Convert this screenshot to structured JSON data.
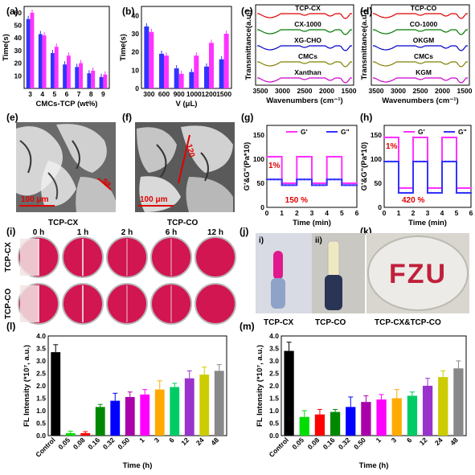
{
  "figure": {
    "panels": [
      "(a)",
      "(b)",
      "(c)",
      "(d)",
      "(e)",
      "(f)",
      "(g)",
      "(h)",
      "(i)",
      "(j)",
      "(k)",
      "(l)",
      "(m)"
    ]
  },
  "chart_data": [
    {
      "id": "a",
      "type": "bar",
      "xlabel": "CMCs-TCP (wt%)",
      "ylabel": "Time(s)",
      "categories": [
        "3",
        "4",
        "5",
        "6",
        "7",
        "8",
        "9"
      ],
      "yticks": [
        "10",
        "20",
        "30",
        "40",
        "50",
        "60"
      ],
      "ylim": [
        0,
        65
      ],
      "series": [
        {
          "color": "#3333ff",
          "values": [
            55,
            43,
            28,
            19,
            17,
            12,
            9
          ]
        },
        {
          "color": "#ff33ff",
          "values": [
            60,
            42,
            33,
            26,
            20,
            14,
            11
          ]
        }
      ]
    },
    {
      "id": "b",
      "type": "bar",
      "xlabel": "V (μL)",
      "ylabel": "Time(s)",
      "categories": [
        "300",
        "600",
        "900",
        "1000",
        "1200",
        "1500"
      ],
      "yticks": [
        "0",
        "10",
        "20",
        "30",
        "40"
      ],
      "ylim": [
        0,
        45
      ],
      "series": [
        {
          "color": "#3333ff",
          "values": [
            34,
            19,
            11,
            9,
            12,
            16
          ]
        },
        {
          "color": "#ff33ff",
          "values": [
            31,
            18,
            8,
            18,
            25,
            30
          ]
        }
      ]
    },
    {
      "id": "c",
      "type": "line",
      "xlabel": "Wavenumbers (cm⁻¹)",
      "ylabel": "Transmittance(a.u.)",
      "xticks": [
        "3500",
        "3000",
        "2500",
        "2000",
        "1500"
      ],
      "series": [
        {
          "name": "TCP-CX",
          "color": "#e00000"
        },
        {
          "name": "CX-1000",
          "color": "#007a00"
        },
        {
          "name": "XG-CHO",
          "color": "#0000cc"
        },
        {
          "name": "CMCs",
          "color": "#808000"
        },
        {
          "name": "Xanthan",
          "color": "#cc00cc"
        }
      ]
    },
    {
      "id": "d",
      "type": "line",
      "xlabel": "Wavenumbers (cm⁻¹)",
      "ylabel": "Transmittance(a.u.)",
      "xticks": [
        "3500",
        "3000",
        "2500",
        "2000",
        "1500"
      ],
      "series": [
        {
          "name": "TCP-CO",
          "color": "#e00000"
        },
        {
          "name": "CO-1000",
          "color": "#007a00"
        },
        {
          "name": "OKGM",
          "color": "#0000cc"
        },
        {
          "name": "CMCs",
          "color": "#808000"
        },
        {
          "name": "KGM",
          "color": "#cc00cc"
        }
      ]
    },
    {
      "id": "g",
      "type": "line",
      "xlabel": "Time (min)",
      "ylabel": "G'&G\"(Pa*10)",
      "xticks": [
        "0",
        "1",
        "2",
        "3",
        "4",
        "5",
        "6"
      ],
      "xlim": [
        0,
        6
      ],
      "yticks": [
        "0",
        "50",
        "100",
        "150"
      ],
      "ylim": [
        0,
        170
      ],
      "legend": [
        "G'",
        "G\""
      ],
      "annotations": [
        "1%",
        "150 %"
      ],
      "series": [
        {
          "name": "G'",
          "color": "#ff33ff",
          "x": [
            0,
            1,
            1,
            2,
            2,
            3,
            3,
            4,
            4,
            5,
            5,
            6
          ],
          "y": [
            105,
            105,
            50,
            50,
            105,
            105,
            50,
            50,
            105,
            105,
            50,
            50
          ]
        },
        {
          "name": "G\"",
          "color": "#3333ff",
          "x": [
            0,
            1,
            1,
            2,
            2,
            3,
            3,
            4,
            4,
            5,
            5,
            6
          ],
          "y": [
            58,
            58,
            46,
            46,
            58,
            58,
            46,
            46,
            58,
            58,
            46,
            46
          ]
        }
      ]
    },
    {
      "id": "h",
      "type": "line",
      "xlabel": "Time (min)",
      "ylabel": "G'&G\"(Pa*10)",
      "xticks": [
        "0",
        "1",
        "2",
        "3",
        "4",
        "5",
        "6"
      ],
      "xlim": [
        0,
        6
      ],
      "yticks": [
        "0",
        "50",
        "100",
        "150"
      ],
      "ylim": [
        0,
        170
      ],
      "legend": [
        "G'",
        "G\""
      ],
      "annotations": [
        "1%",
        "420 %"
      ],
      "series": [
        {
          "name": "G'",
          "color": "#ff33ff",
          "x": [
            0,
            1,
            1,
            2,
            2,
            3,
            3,
            4,
            4,
            5,
            5,
            6
          ],
          "y": [
            145,
            145,
            40,
            40,
            145,
            145,
            40,
            40,
            145,
            145,
            40,
            40
          ]
        },
        {
          "name": "G\"",
          "color": "#3333ff",
          "x": [
            0,
            1,
            1,
            2,
            2,
            3,
            3,
            4,
            4,
            5,
            5,
            6
          ],
          "y": [
            95,
            95,
            30,
            30,
            95,
            95,
            30,
            30,
            95,
            95,
            30,
            30
          ]
        }
      ]
    },
    {
      "id": "l",
      "type": "bar",
      "xlabel": "Time (h)",
      "ylabel": "FL Intensity (*10⁷, a.u.)",
      "categories": [
        "Control",
        "0.05",
        "0.08",
        "0.16",
        "0.32",
        "0.50",
        "1",
        "3",
        "6",
        "12",
        "24",
        "48"
      ],
      "yticks": [
        "0.0",
        "0.5",
        "1.0",
        "1.5",
        "2.0",
        "2.5",
        "3.0",
        "3.5",
        "4.0"
      ],
      "ylim": [
        0,
        4.0
      ],
      "values": [
        3.35,
        0.1,
        0.1,
        1.15,
        1.4,
        1.55,
        1.65,
        1.85,
        1.95,
        2.3,
        2.45,
        2.6
      ],
      "errors": [
        0.3,
        0.08,
        0.06,
        0.1,
        0.3,
        0.2,
        0.2,
        0.35,
        0.15,
        0.3,
        0.3,
        0.25
      ],
      "colors": [
        "#000000",
        "#00dd00",
        "#ff0000",
        "#008800",
        "#0000ff",
        "#aa00aa",
        "#ff00ff",
        "#ffaa00",
        "#00cc66",
        "#9933cc",
        "#cccc00",
        "#888888"
      ]
    },
    {
      "id": "m",
      "type": "bar",
      "xlabel": "Time (h)",
      "ylabel": "FL Intensity (*10⁷, a.u.)",
      "categories": [
        "Control",
        "0.05",
        "0.08",
        "0.16",
        "0.32",
        "0.50",
        "1",
        "3",
        "6",
        "12",
        "24",
        "48"
      ],
      "yticks": [
        "0.0",
        "0.5",
        "1.0",
        "1.5",
        "2.0",
        "2.5",
        "3.0",
        "3.5",
        "4.0"
      ],
      "ylim": [
        0,
        4.0
      ],
      "values": [
        3.4,
        0.75,
        0.85,
        0.95,
        1.15,
        1.35,
        1.45,
        1.5,
        1.6,
        2.0,
        2.35,
        2.7
      ],
      "errors": [
        0.35,
        0.25,
        0.2,
        0.1,
        0.4,
        0.25,
        0.2,
        0.35,
        0.15,
        0.3,
        0.25,
        0.3
      ],
      "colors": [
        "#000000",
        "#00dd00",
        "#ff0000",
        "#008800",
        "#0000ff",
        "#aa00aa",
        "#ff00ff",
        "#ffaa00",
        "#00cc66",
        "#9933cc",
        "#cccc00",
        "#888888"
      ]
    }
  ],
  "photos": {
    "e": {
      "caption": "TCP-CX",
      "scale": "100 μm",
      "measure": "98"
    },
    "f": {
      "caption": "TCP-CO",
      "scale": "100 μm",
      "measure": "120"
    },
    "i": {
      "times": [
        "0 h",
        "1 h",
        "2 h",
        "6 h",
        "12 h"
      ],
      "rows": [
        "TCP-CX",
        "TCP-CO"
      ]
    },
    "j": {
      "sub": [
        "i)",
        "ii)"
      ],
      "captions": [
        "TCP-CX",
        "TCP-CO"
      ]
    },
    "k": {
      "caption": "TCP-CX&TCP-CO",
      "text": "FZU"
    }
  }
}
